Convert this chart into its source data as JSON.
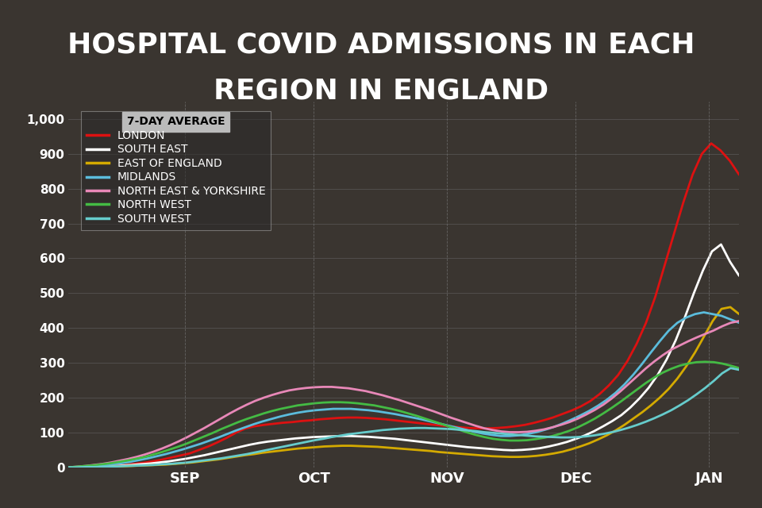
{
  "title_line1": "HOSPITAL COVID ADMISSIONS IN EACH",
  "title_line2": "REGION IN ENGLAND",
  "title_fontsize": 26,
  "title_bg_color": "#000000",
  "plot_bg_color": "#3a3530",
  "fig_bg_color": "#3a3530",
  "text_color": "#ffffff",
  "ylabel_ticks": [
    0,
    100,
    200,
    300,
    400,
    500,
    600,
    700,
    800,
    900,
    1000
  ],
  "x_tick_labels": [
    "SEP",
    "OCT",
    "NOV",
    "DEC",
    "JAN"
  ],
  "legend_title": "7-DAY AVERAGE",
  "series": [
    {
      "name": "LONDON",
      "color": "#dd1111",
      "data": [
        0,
        1,
        2,
        3,
        4,
        5,
        7,
        10,
        13,
        17,
        22,
        28,
        34,
        40,
        50,
        60,
        72,
        85,
        100,
        112,
        118,
        122,
        125,
        128,
        130,
        133,
        135,
        138,
        140,
        142,
        143,
        143,
        142,
        140,
        138,
        135,
        132,
        129,
        126,
        123,
        120,
        118,
        115,
        113,
        112,
        112,
        113,
        115,
        118,
        122,
        128,
        135,
        143,
        153,
        163,
        175,
        190,
        210,
        235,
        265,
        305,
        355,
        415,
        490,
        580,
        670,
        760,
        840,
        900,
        930,
        910,
        880,
        840
      ]
    },
    {
      "name": "SOUTH EAST",
      "color": "#ffffff",
      "data": [
        0,
        1,
        1,
        2,
        3,
        4,
        5,
        7,
        9,
        11,
        14,
        17,
        21,
        25,
        30,
        35,
        41,
        47,
        53,
        59,
        65,
        70,
        74,
        77,
        80,
        83,
        85,
        87,
        88,
        89,
        90,
        90,
        89,
        88,
        86,
        84,
        82,
        79,
        76,
        73,
        70,
        67,
        64,
        61,
        58,
        56,
        54,
        52,
        50,
        49,
        50,
        52,
        55,
        60,
        66,
        73,
        82,
        92,
        104,
        118,
        133,
        150,
        172,
        198,
        228,
        265,
        310,
        365,
        430,
        500,
        565,
        620,
        640,
        590,
        550
      ]
    },
    {
      "name": "EAST OF ENGLAND",
      "color": "#d4aa00",
      "data": [
        0,
        0,
        1,
        1,
        2,
        2,
        3,
        4,
        5,
        6,
        7,
        8,
        10,
        12,
        14,
        17,
        20,
        23,
        27,
        31,
        35,
        38,
        42,
        45,
        48,
        51,
        54,
        56,
        58,
        60,
        61,
        62,
        62,
        61,
        60,
        59,
        57,
        55,
        53,
        51,
        49,
        47,
        44,
        42,
        40,
        38,
        36,
        34,
        32,
        31,
        30,
        30,
        31,
        33,
        36,
        40,
        45,
        52,
        60,
        69,
        80,
        92,
        106,
        122,
        140,
        158,
        178,
        200,
        225,
        255,
        290,
        330,
        375,
        420,
        455,
        460,
        440
      ]
    },
    {
      "name": "MIDLANDS",
      "color": "#5bbcdc",
      "data": [
        0,
        1,
        2,
        4,
        6,
        9,
        12,
        16,
        21,
        26,
        32,
        38,
        45,
        52,
        60,
        68,
        77,
        86,
        96,
        106,
        115,
        124,
        132,
        139,
        146,
        152,
        157,
        161,
        164,
        166,
        168,
        168,
        168,
        166,
        164,
        161,
        157,
        153,
        148,
        143,
        138,
        132,
        126,
        120,
        114,
        108,
        102,
        97,
        93,
        90,
        90,
        92,
        96,
        101,
        108,
        116,
        126,
        137,
        149,
        162,
        177,
        194,
        214,
        238,
        266,
        297,
        330,
        362,
        392,
        415,
        430,
        440,
        445,
        440,
        435,
        425,
        415
      ]
    },
    {
      "name": "NORTH EAST & YORKSHIRE",
      "color": "#e888b8",
      "data": [
        0,
        2,
        4,
        7,
        10,
        14,
        19,
        24,
        30,
        37,
        45,
        54,
        64,
        75,
        87,
        100,
        113,
        127,
        141,
        155,
        168,
        180,
        191,
        200,
        208,
        215,
        221,
        225,
        228,
        230,
        231,
        231,
        229,
        227,
        223,
        219,
        213,
        207,
        200,
        193,
        185,
        177,
        169,
        161,
        152,
        143,
        135,
        127,
        119,
        112,
        107,
        103,
        101,
        101,
        102,
        105,
        109,
        115,
        122,
        130,
        140,
        152,
        165,
        180,
        198,
        218,
        240,
        262,
        284,
        304,
        322,
        338,
        350,
        362,
        373,
        383,
        393,
        405,
        415,
        420
      ]
    },
    {
      "name": "NORTH WEST",
      "color": "#44bb44",
      "data": [
        0,
        2,
        4,
        6,
        9,
        12,
        16,
        20,
        25,
        30,
        37,
        44,
        52,
        60,
        69,
        79,
        89,
        99,
        110,
        120,
        130,
        139,
        147,
        155,
        162,
        168,
        173,
        178,
        181,
        184,
        186,
        187,
        187,
        186,
        184,
        181,
        178,
        173,
        168,
        162,
        155,
        148,
        140,
        132,
        124,
        116,
        108,
        100,
        93,
        87,
        82,
        79,
        77,
        77,
        78,
        81,
        85,
        90,
        97,
        105,
        115,
        127,
        140,
        155,
        171,
        188,
        206,
        224,
        242,
        258,
        272,
        283,
        292,
        298,
        302,
        303,
        302,
        298,
        292,
        285
      ]
    },
    {
      "name": "SOUTH WEST",
      "color": "#66cccc",
      "data": [
        0,
        0,
        1,
        1,
        2,
        2,
        3,
        4,
        5,
        6,
        7,
        9,
        10,
        12,
        14,
        17,
        20,
        23,
        26,
        30,
        34,
        38,
        43,
        48,
        53,
        58,
        63,
        68,
        73,
        78,
        82,
        87,
        91,
        95,
        98,
        101,
        104,
        107,
        109,
        111,
        112,
        113,
        113,
        112,
        111,
        110,
        108,
        106,
        104,
        101,
        99,
        97,
        95,
        93,
        91,
        89,
        88,
        87,
        86,
        86,
        87,
        89,
        92,
        96,
        101,
        107,
        114,
        122,
        131,
        141,
        152,
        164,
        178,
        193,
        210,
        228,
        248,
        270,
        285,
        280
      ]
    }
  ]
}
